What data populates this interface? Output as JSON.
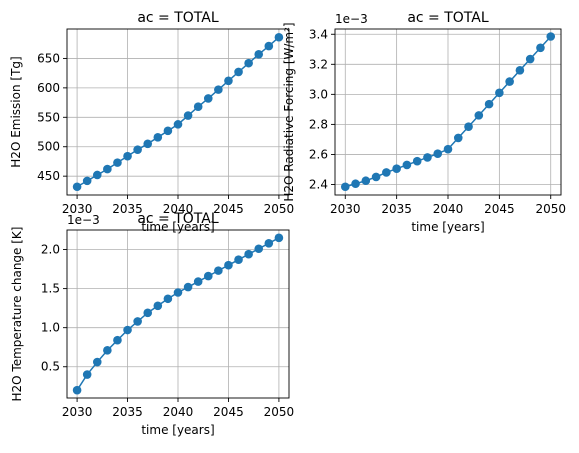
{
  "chart_data": [
    {
      "type": "line",
      "title": "ac = TOTAL",
      "xlabel": "time [years]",
      "ylabel": "H2O Emission [Tg]",
      "offset_text": "",
      "xlim": [
        2029.0,
        2051.0
      ],
      "ylim": [
        418,
        700
      ],
      "xticks": [
        2030,
        2035,
        2040,
        2045,
        2050
      ],
      "yticks": [
        450,
        500,
        550,
        600,
        650
      ],
      "ytick_labels": [
        "450",
        "500",
        "550",
        "600",
        "650"
      ],
      "grid": true,
      "marker": "circle",
      "color": "#1f77b4",
      "series": [
        {
          "x": [
            2030,
            2031,
            2032,
            2033,
            2034,
            2035,
            2036,
            2037,
            2038,
            2039,
            2040,
            2041,
            2042,
            2043,
            2044,
            2045,
            2046,
            2047,
            2048,
            2049,
            2050
          ],
          "values": [
            432,
            442,
            452,
            462,
            473,
            484,
            495,
            505,
            516,
            527,
            538,
            553,
            568,
            582,
            597,
            612,
            627,
            642,
            657,
            671,
            686
          ]
        }
      ]
    },
    {
      "type": "line",
      "title": "ac = TOTAL",
      "xlabel": "time [years]",
      "ylabel": "H2O Radiative Forcing [W/m²]",
      "offset_text": "1e−3",
      "xlim": [
        2029.0,
        2051.0
      ],
      "ylim": [
        2.33,
        3.435
      ],
      "xticks": [
        2030,
        2035,
        2040,
        2045,
        2050
      ],
      "yticks": [
        2.4,
        2.6,
        2.8,
        3.0,
        3.2,
        3.4
      ],
      "ytick_labels": [
        "2.4",
        "2.6",
        "2.8",
        "3.0",
        "3.2",
        "3.4"
      ],
      "grid": true,
      "marker": "circle",
      "color": "#1f77b4",
      "series": [
        {
          "x": [
            2030,
            2031,
            2032,
            2033,
            2034,
            2035,
            2036,
            2037,
            2038,
            2039,
            2040,
            2041,
            2042,
            2043,
            2044,
            2045,
            2046,
            2047,
            2048,
            2049,
            2050
          ],
          "values": [
            2.385,
            2.405,
            2.425,
            2.45,
            2.48,
            2.505,
            2.53,
            2.555,
            2.58,
            2.605,
            2.635,
            2.71,
            2.785,
            2.86,
            2.935,
            3.01,
            3.085,
            3.16,
            3.235,
            3.31,
            3.385
          ]
        }
      ]
    },
    {
      "type": "line",
      "title": "ac = TOTAL",
      "xlabel": "time [years]",
      "ylabel": "H2O Temperature change [K]",
      "offset_text": "1e−3",
      "xlim": [
        2029.0,
        2051.0
      ],
      "ylim": [
        0.1,
        2.25
      ],
      "xticks": [
        2030,
        2035,
        2040,
        2045,
        2050
      ],
      "yticks": [
        0.5,
        1.0,
        1.5,
        2.0
      ],
      "ytick_labels": [
        "0.5",
        "1.0",
        "1.5",
        "2.0"
      ],
      "grid": true,
      "marker": "circle",
      "color": "#1f77b4",
      "series": [
        {
          "x": [
            2030,
            2031,
            2032,
            2033,
            2034,
            2035,
            2036,
            2037,
            2038,
            2039,
            2040,
            2041,
            2042,
            2043,
            2044,
            2045,
            2046,
            2047,
            2048,
            2049,
            2050
          ],
          "values": [
            0.2,
            0.4,
            0.56,
            0.71,
            0.84,
            0.97,
            1.08,
            1.19,
            1.28,
            1.37,
            1.45,
            1.52,
            1.59,
            1.66,
            1.73,
            1.8,
            1.87,
            1.94,
            2.01,
            2.08,
            2.15
          ]
        }
      ]
    }
  ]
}
